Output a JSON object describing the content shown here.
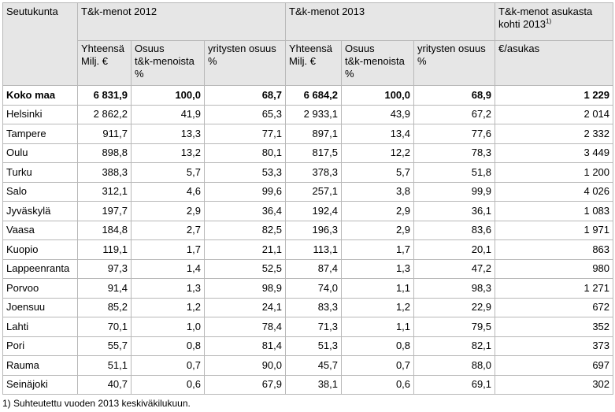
{
  "header": {
    "region_label": "Seutukunta",
    "group_2012": "T&k-menot 2012",
    "group_2013": "T&k-menot 2013",
    "group_per_capita": "T&k-menot asukasta kohti 2013",
    "group_per_capita_sup": "1)",
    "sub_total_line1": "Yhteensä",
    "sub_total_line2": "Milj. €",
    "sub_share_line1": "Osuus",
    "sub_share_line2": "t&k-menoista",
    "sub_share_line3": "%",
    "sub_company_line1": "yritysten osuus",
    "sub_company_line2": "%",
    "sub_per_capita": "€/asukas"
  },
  "rows": [
    {
      "region": "Koko maa",
      "t2012": "6 831,9",
      "s2012": "100,0",
      "c2012": "68,7",
      "t2013": "6 684,2",
      "s2013": "100,0",
      "c2013": "68,9",
      "pc": "1 229"
    },
    {
      "region": "Helsinki",
      "t2012": "2 862,2",
      "s2012": "41,9",
      "c2012": "65,3",
      "t2013": "2 933,1",
      "s2013": "43,9",
      "c2013": "67,2",
      "pc": "2 014"
    },
    {
      "region": "Tampere",
      "t2012": "911,7",
      "s2012": "13,3",
      "c2012": "77,1",
      "t2013": "897,1",
      "s2013": "13,4",
      "c2013": "77,6",
      "pc": "2 332"
    },
    {
      "region": "Oulu",
      "t2012": "898,8",
      "s2012": "13,2",
      "c2012": "80,1",
      "t2013": "817,5",
      "s2013": "12,2",
      "c2013": "78,3",
      "pc": "3 449"
    },
    {
      "region": "Turku",
      "t2012": "388,3",
      "s2012": "5,7",
      "c2012": "53,3",
      "t2013": "378,3",
      "s2013": "5,7",
      "c2013": "51,8",
      "pc": "1 200"
    },
    {
      "region": "Salo",
      "t2012": "312,1",
      "s2012": "4,6",
      "c2012": "99,6",
      "t2013": "257,1",
      "s2013": "3,8",
      "c2013": "99,9",
      "pc": "4 026"
    },
    {
      "region": "Jyväskylä",
      "t2012": "197,7",
      "s2012": "2,9",
      "c2012": "36,4",
      "t2013": "192,4",
      "s2013": "2,9",
      "c2013": "36,1",
      "pc": "1 083"
    },
    {
      "region": "Vaasa",
      "t2012": "184,8",
      "s2012": "2,7",
      "c2012": "82,5",
      "t2013": "196,3",
      "s2013": "2,9",
      "c2013": "83,6",
      "pc": "1 971"
    },
    {
      "region": "Kuopio",
      "t2012": "119,1",
      "s2012": "1,7",
      "c2012": "21,1",
      "t2013": "113,1",
      "s2013": "1,7",
      "c2013": "20,1",
      "pc": "863"
    },
    {
      "region": "Lappeenranta",
      "t2012": "97,3",
      "s2012": "1,4",
      "c2012": "52,5",
      "t2013": "87,4",
      "s2013": "1,3",
      "c2013": "47,2",
      "pc": "980"
    },
    {
      "region": "Porvoo",
      "t2012": "91,4",
      "s2012": "1,3",
      "c2012": "98,9",
      "t2013": "74,0",
      "s2013": "1,1",
      "c2013": "98,3",
      "pc": "1 271"
    },
    {
      "region": "Joensuu",
      "t2012": "85,2",
      "s2012": "1,2",
      "c2012": "24,1",
      "t2013": "83,3",
      "s2013": "1,2",
      "c2013": "22,9",
      "pc": "672"
    },
    {
      "region": "Lahti",
      "t2012": "70,1",
      "s2012": "1,0",
      "c2012": "78,4",
      "t2013": "71,3",
      "s2013": "1,1",
      "c2013": "79,5",
      "pc": "352"
    },
    {
      "region": "Pori",
      "t2012": "55,7",
      "s2012": "0,8",
      "c2012": "81,4",
      "t2013": "51,3",
      "s2013": "0,8",
      "c2013": "82,1",
      "pc": "373"
    },
    {
      "region": "Rauma",
      "t2012": "51,1",
      "s2012": "0,7",
      "c2012": "90,0",
      "t2013": "45,7",
      "s2013": "0,7",
      "c2013": "88,0",
      "pc": "697"
    },
    {
      "region": "Seinäjoki",
      "t2012": "40,7",
      "s2012": "0,6",
      "c2012": "67,9",
      "t2013": "38,1",
      "s2013": "0,6",
      "c2013": "69,1",
      "pc": "302"
    }
  ],
  "footnote": "1) Suhteutettu vuoden 2013 keskiväkilukuun."
}
